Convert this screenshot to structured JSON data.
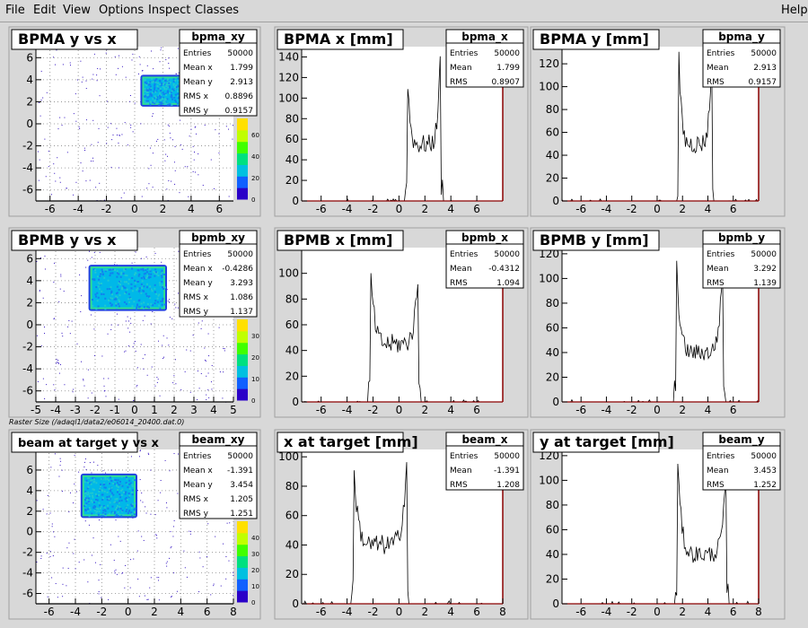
{
  "menubar": {
    "items": [
      "File",
      "Edit",
      "View",
      "Options",
      "Inspect",
      "Classes"
    ],
    "help": "Help"
  },
  "canvas_note": "Raster Size (/adaql1/data2/e06014_20400.dat.0)",
  "colors": {
    "pad_bg": "#d8d8d8",
    "frame": "#ffffff",
    "axis_red": "#8b0000"
  },
  "chart_data": [
    {
      "type": "heatmap",
      "title": "BPMA y vs x",
      "stats_name": "bpma_xy",
      "stats": [
        [
          "Entries",
          "50000"
        ],
        [
          "Mean x",
          "1.799"
        ],
        [
          "Mean y",
          "2.913"
        ],
        [
          "RMS x",
          "0.8896"
        ],
        [
          "RMS y",
          "0.9157"
        ]
      ],
      "xlim": [
        -7,
        7
      ],
      "ylim": [
        -7,
        7
      ],
      "xticks": [
        -6,
        -4,
        -2,
        0,
        2,
        4,
        6
      ],
      "yticks": [
        -6,
        -4,
        -2,
        0,
        2,
        4,
        6
      ],
      "rect": [
        0.6,
        1.8,
        3.3,
        4.2
      ],
      "zticks": [
        0,
        20,
        40,
        60
      ]
    },
    {
      "type": "area",
      "title": "BPMA x [mm]",
      "stats_name": "bpma_x",
      "stats": [
        [
          "Entries",
          "50000"
        ],
        [
          "Mean",
          "1.799"
        ],
        [
          "RMS",
          "0.8907"
        ]
      ],
      "xlim": [
        -7.5,
        8
      ],
      "ylim": [
        0,
        150
      ],
      "xticks": [
        -6,
        -4,
        -2,
        0,
        2,
        4,
        6
      ],
      "yticks": [
        0,
        20,
        40,
        60,
        80,
        100,
        120,
        140
      ],
      "profile": {
        "lo": 0.6,
        "hi": 3.2,
        "peak": 145,
        "mid": 55
      }
    },
    {
      "type": "area",
      "title": "BPMA y [mm]",
      "stats_name": "bpma_y",
      "stats": [
        [
          "Entries",
          "50000"
        ],
        [
          "Mean",
          "2.913"
        ],
        [
          "RMS",
          "0.9157"
        ]
      ],
      "xlim": [
        -7.5,
        8
      ],
      "ylim": [
        0,
        135
      ],
      "xticks": [
        -6,
        -4,
        -2,
        0,
        2,
        4,
        6
      ],
      "yticks": [
        0,
        20,
        40,
        60,
        80,
        100,
        120
      ],
      "profile": {
        "lo": 1.7,
        "hi": 4.3,
        "peak": 128,
        "mid": 50
      }
    },
    {
      "type": "heatmap",
      "title": "BPMB y vs x",
      "stats_name": "bpmb_xy",
      "stats": [
        [
          "Entries",
          "50000"
        ],
        [
          "Mean x",
          "-0.4286"
        ],
        [
          "Mean y",
          "3.293"
        ],
        [
          "RMS x",
          "1.086"
        ],
        [
          "RMS y",
          "1.137"
        ]
      ],
      "xlim": [
        -5,
        5
      ],
      "ylim": [
        -7,
        7
      ],
      "xticks": [
        -5,
        -4,
        -3,
        -2,
        -1,
        0,
        1,
        2,
        3,
        4,
        5
      ],
      "yticks": [
        -6,
        -4,
        -2,
        0,
        2,
        4,
        6
      ],
      "rect": [
        -2.2,
        1.5,
        1.5,
        5.2
      ],
      "zticks": [
        0,
        10,
        20,
        30
      ]
    },
    {
      "type": "area",
      "title": "BPMB x [mm]",
      "stats_name": "bpmb_x",
      "stats": [
        [
          "Entries",
          "50000"
        ],
        [
          "Mean",
          "-0.4312"
        ],
        [
          "RMS",
          "1.094"
        ]
      ],
      "xlim": [
        -7.5,
        8
      ],
      "ylim": [
        0,
        120
      ],
      "xticks": [
        -6,
        -4,
        -2,
        0,
        2,
        4,
        6
      ],
      "yticks": [
        0,
        20,
        40,
        60,
        80,
        100
      ],
      "profile": {
        "lo": -2.2,
        "hi": 1.5,
        "peak": 105,
        "mid": 45
      }
    },
    {
      "type": "area",
      "title": "BPMB y [mm]",
      "stats_name": "bpmb_y",
      "stats": [
        [
          "Entries",
          "50000"
        ],
        [
          "Mean",
          "3.292"
        ],
        [
          "RMS",
          "1.139"
        ]
      ],
      "xlim": [
        -7.5,
        8
      ],
      "ylim": [
        0,
        125
      ],
      "xticks": [
        -6,
        -4,
        -2,
        0,
        2,
        4,
        6
      ],
      "yticks": [
        0,
        20,
        40,
        60,
        80,
        100,
        120
      ],
      "profile": {
        "lo": 1.5,
        "hi": 5.2,
        "peak": 118,
        "mid": 40
      }
    },
    {
      "type": "heatmap",
      "title": "beam at target y vs x",
      "stats_name": "beam_xy",
      "stats": [
        [
          "Entries",
          "50000"
        ],
        [
          "Mean x",
          "-1.391"
        ],
        [
          "Mean y",
          "3.454"
        ],
        [
          "RMS x",
          "1.205"
        ],
        [
          "RMS y",
          "1.251"
        ]
      ],
      "xlim": [
        -7,
        8
      ],
      "ylim": [
        -7,
        8
      ],
      "xticks": [
        -6,
        -4,
        -2,
        0,
        2,
        4,
        6,
        8
      ],
      "yticks": [
        -6,
        -4,
        -2,
        0,
        2,
        4,
        6
      ],
      "rect": [
        -3.4,
        1.6,
        0.5,
        5.4
      ],
      "zticks": [
        0,
        10,
        20,
        30,
        40
      ]
    },
    {
      "type": "area",
      "title": "x at target [mm]",
      "stats_name": "beam_x",
      "stats": [
        [
          "Entries",
          "50000"
        ],
        [
          "Mean",
          "-1.391"
        ],
        [
          "RMS",
          "1.208"
        ]
      ],
      "xlim": [
        -7.5,
        8
      ],
      "ylim": [
        0,
        105
      ],
      "xticks": [
        -6,
        -4,
        -2,
        0,
        2,
        4,
        6,
        8
      ],
      "yticks": [
        0,
        20,
        40,
        60,
        80,
        100
      ],
      "profile": {
        "lo": -3.5,
        "hi": 0.6,
        "peak": 97,
        "mid": 40
      }
    },
    {
      "type": "area",
      "title": "y at target [mm]",
      "stats_name": "beam_y",
      "stats": [
        [
          "Entries",
          "50000"
        ],
        [
          "Mean",
          "3.453"
        ],
        [
          "RMS",
          "1.252"
        ]
      ],
      "xlim": [
        -7.5,
        8
      ],
      "ylim": [
        0,
        125
      ],
      "xticks": [
        -6,
        -4,
        -2,
        0,
        2,
        4,
        6,
        8
      ],
      "yticks": [
        0,
        20,
        40,
        60,
        80,
        100,
        120
      ],
      "profile": {
        "lo": 1.6,
        "hi": 5.5,
        "peak": 118,
        "mid": 40
      }
    }
  ]
}
